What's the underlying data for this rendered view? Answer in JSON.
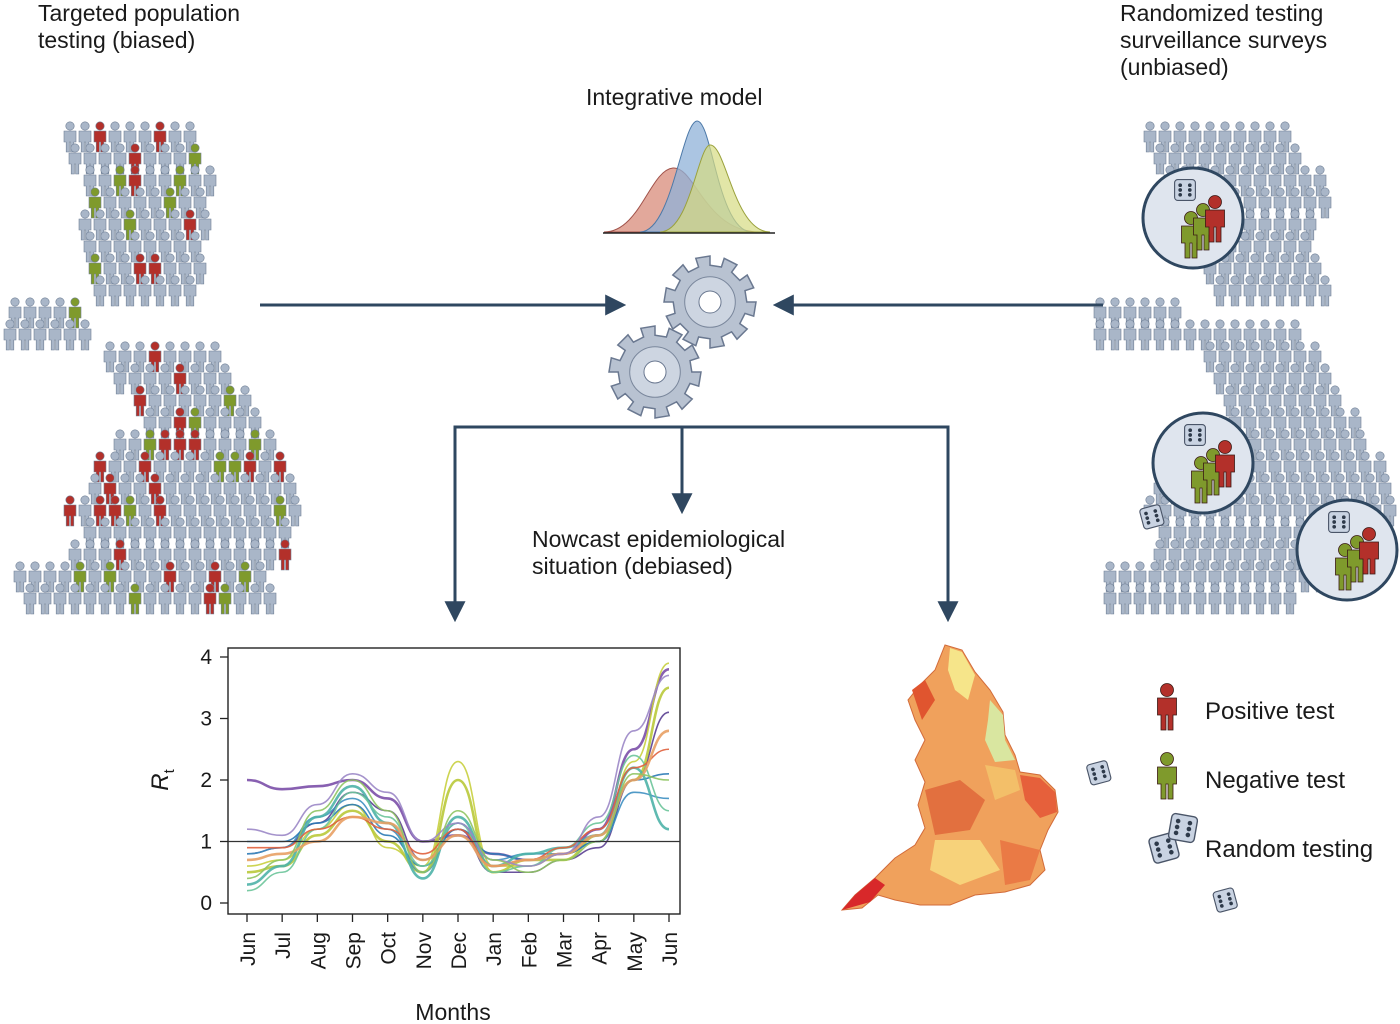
{
  "labels": {
    "biased": "Targeted population\ntesting (biased)",
    "unbiased": "Randomized testing\nsurveillance surveys\n(unbiased)",
    "model": "Integrative model",
    "nowcast": "Nowcast epidemiological\nsituation (debiased)"
  },
  "legend": {
    "positive": "Positive test",
    "negative": "Negative test",
    "random": "Random testing"
  },
  "colors": {
    "arrow": "#2f4760",
    "person_neutral": "#a9b6c8",
    "person_positive": "#b3302a",
    "person_negative": "#7f9a2c",
    "gear": "#b8c2d1"
  },
  "chart_data": {
    "type": "line",
    "xlabel": "Months",
    "ylabel": "R",
    "ylabel_subscript": "t",
    "categories": [
      "Jun",
      "Jul",
      "Aug",
      "Sep",
      "Oct",
      "Nov",
      "Dec",
      "Jan",
      "Feb",
      "Mar",
      "Apr",
      "May",
      "Jun"
    ],
    "ylim": [
      0,
      4
    ],
    "yticks": [
      0,
      1,
      2,
      3,
      4
    ],
    "reference_line": 1,
    "series": [
      {
        "color": "#7b4fa8",
        "values": [
          2.0,
          1.85,
          1.9,
          2.0,
          1.7,
          1.0,
          1.1,
          0.8,
          0.7,
          0.8,
          1.2,
          2.5,
          3.8
        ]
      },
      {
        "color": "#5a3f91",
        "values": [
          0.8,
          0.9,
          1.3,
          1.8,
          1.5,
          0.7,
          1.2,
          0.5,
          0.5,
          0.7,
          0.9,
          2.0,
          3.1
        ]
      },
      {
        "color": "#c8cf3e",
        "values": [
          0.6,
          0.7,
          1.2,
          1.6,
          0.9,
          0.6,
          2.3,
          0.6,
          0.6,
          0.8,
          1.0,
          2.3,
          3.9
        ]
      },
      {
        "color": "#b9c93a",
        "values": [
          0.5,
          0.6,
          1.1,
          1.5,
          1.0,
          0.5,
          2.0,
          0.5,
          0.7,
          0.7,
          1.1,
          2.0,
          3.5
        ]
      },
      {
        "color": "#3d8fc1",
        "values": [
          0.8,
          0.9,
          1.4,
          1.7,
          1.2,
          0.5,
          1.3,
          0.7,
          0.8,
          0.8,
          1.0,
          1.8,
          1.7
        ]
      },
      {
        "color": "#2a7ab5",
        "values": [
          1.0,
          1.0,
          1.3,
          1.6,
          1.1,
          0.6,
          1.2,
          0.8,
          0.7,
          0.8,
          1.0,
          2.0,
          2.1
        ]
      },
      {
        "color": "#4eb3a9",
        "values": [
          0.3,
          0.6,
          1.4,
          1.9,
          1.3,
          0.4,
          1.4,
          0.6,
          0.8,
          0.9,
          1.1,
          2.2,
          1.2
        ]
      },
      {
        "color": "#6cc49a",
        "values": [
          0.2,
          0.5,
          1.2,
          1.8,
          1.4,
          0.6,
          1.3,
          0.5,
          0.6,
          0.9,
          1.3,
          2.4,
          1.5
        ]
      },
      {
        "color": "#e0603d",
        "values": [
          0.9,
          0.9,
          1.2,
          1.4,
          1.2,
          0.8,
          1.2,
          0.6,
          0.7,
          0.9,
          1.2,
          2.2,
          2.5
        ]
      },
      {
        "color": "#e8a064",
        "values": [
          0.7,
          0.8,
          1.0,
          1.4,
          1.3,
          0.7,
          1.1,
          0.6,
          0.7,
          0.8,
          1.1,
          2.0,
          2.8
        ]
      },
      {
        "color": "#9b87c7",
        "values": [
          1.2,
          1.1,
          1.6,
          2.1,
          1.8,
          1.0,
          1.3,
          0.7,
          0.6,
          0.8,
          1.4,
          2.8,
          3.7
        ]
      },
      {
        "color": "#8fc462",
        "values": [
          0.4,
          0.7,
          1.5,
          2.0,
          1.5,
          0.5,
          1.5,
          0.7,
          0.5,
          0.7,
          1.0,
          2.1,
          2.0
        ]
      }
    ]
  }
}
